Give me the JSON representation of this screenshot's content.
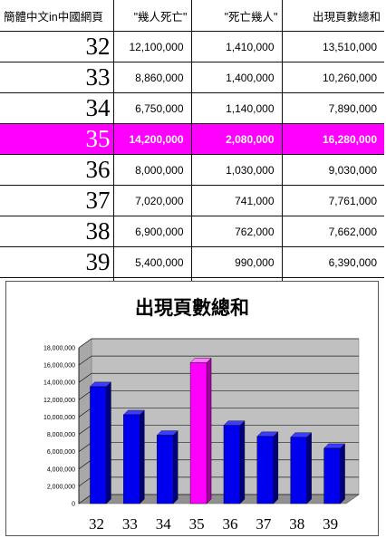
{
  "table": {
    "headers": [
      "簡體中文in中國網頁",
      "\"幾人死亡\"",
      "\"死亡幾人\"",
      "出現頁數總和"
    ],
    "rows": [
      {
        "page": "32",
        "a": "12,100,000",
        "b": "1,410,000",
        "total": "13,510,000",
        "highlight": false
      },
      {
        "page": "33",
        "a": "8,860,000",
        "b": "1,400,000",
        "total": "10,260,000",
        "highlight": false
      },
      {
        "page": "34",
        "a": "6,750,000",
        "b": "1,140,000",
        "total": "7,890,000",
        "highlight": false
      },
      {
        "page": "35",
        "a": "14,200,000",
        "b": "2,080,000",
        "total": "16,280,000",
        "highlight": true
      },
      {
        "page": "36",
        "a": "8,000,000",
        "b": "1,030,000",
        "total": "9,030,000",
        "highlight": false
      },
      {
        "page": "37",
        "a": "7,020,000",
        "b": "741,000",
        "total": "7,761,000",
        "highlight": false
      },
      {
        "page": "38",
        "a": "6,900,000",
        "b": "762,000",
        "total": "7,662,000",
        "highlight": false
      },
      {
        "page": "39",
        "a": "5,400,000",
        "b": "990,000",
        "total": "6,390,000",
        "highlight": false
      }
    ]
  },
  "colors": {
    "highlight_row": "#ff00ff",
    "bar": "#0000ee",
    "bar_highlight": "#ff00ff",
    "plot_wall": "#c0c0c0"
  },
  "chart_data": {
    "type": "bar",
    "title": "出現頁數總和",
    "categories": [
      "32",
      "33",
      "34",
      "35",
      "36",
      "37",
      "38",
      "39"
    ],
    "values": [
      13510000,
      10260000,
      7890000,
      16280000,
      9030000,
      7761000,
      7662000,
      6390000
    ],
    "highlight_index": 3,
    "ylim": [
      0,
      18000000
    ],
    "yticks": [
      "0",
      "2,000,000",
      "4,000,000",
      "6,000,000",
      "8,000,000",
      "10,000,000",
      "12,000,000",
      "14,000,000",
      "16,000,000",
      "18,000,000"
    ],
    "xlabel": "",
    "ylabel": "",
    "grid": true,
    "legend": "none",
    "style": "3d-column"
  }
}
